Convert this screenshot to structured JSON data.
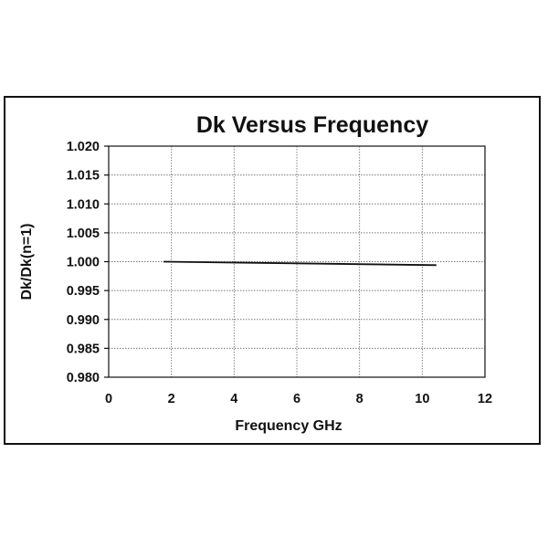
{
  "chart_data": {
    "type": "line",
    "title": "Dk Versus Frequency",
    "xlabel": "Frequency GHz",
    "ylabel": "Dk/Dk(n=1)",
    "xlim": [
      0,
      12
    ],
    "ylim": [
      0.98,
      1.02
    ],
    "x_ticks": [
      "0",
      "2",
      "4",
      "6",
      "8",
      "10",
      "12"
    ],
    "y_ticks": [
      "1.020",
      "1.015",
      "1.010",
      "1.005",
      "1.000",
      "0.995",
      "0.990",
      "0.985",
      "0.980"
    ],
    "grid": true,
    "series": [
      {
        "x": [
          1.75,
          10.45
        ],
        "y": [
          1.0,
          0.9994
        ],
        "color": "#111111"
      }
    ]
  }
}
